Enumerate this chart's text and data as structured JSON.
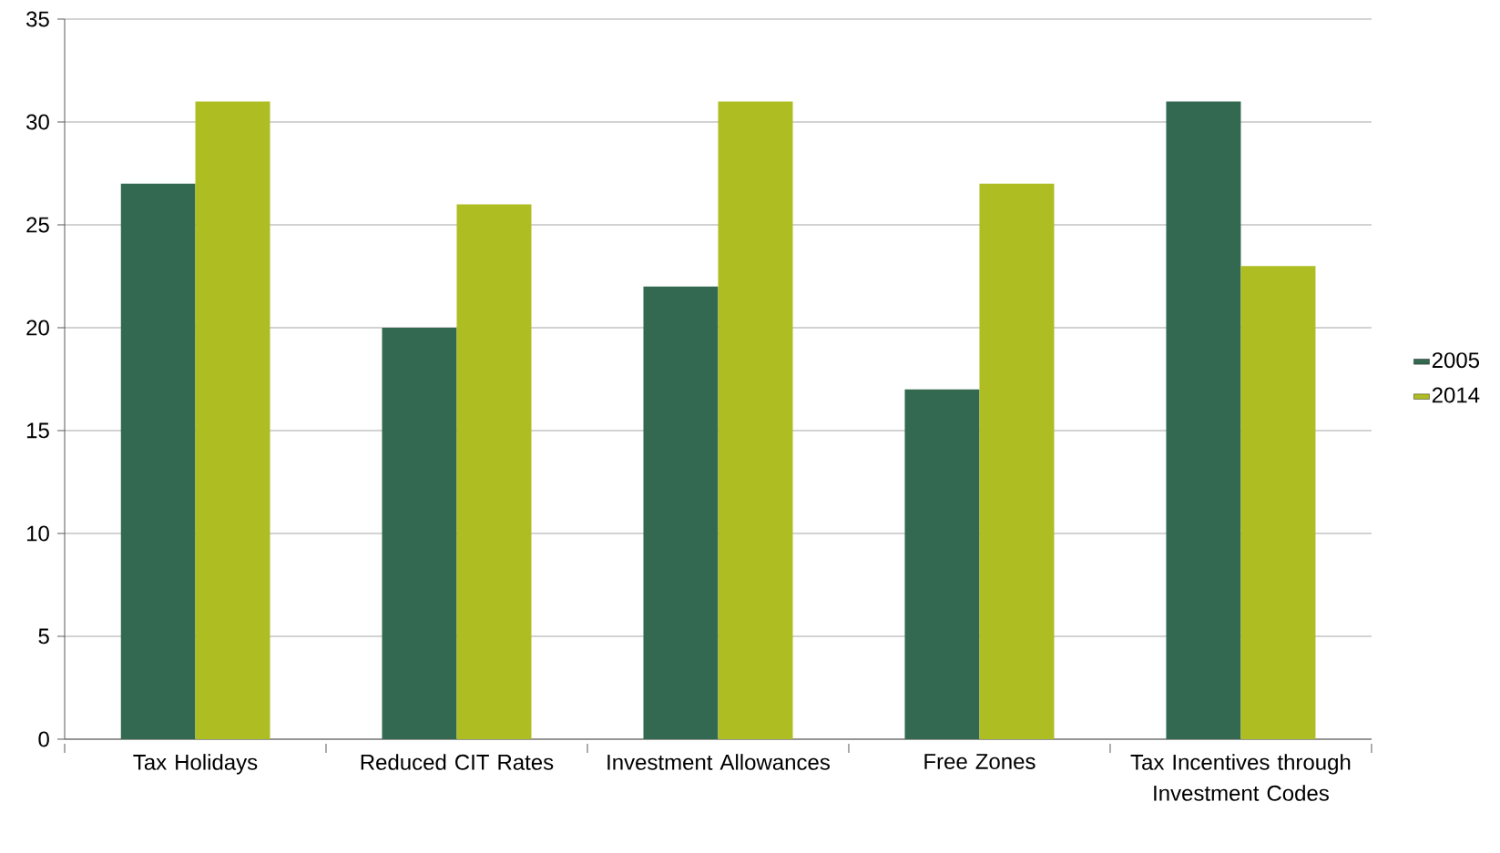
{
  "chart_data": {
    "type": "bar",
    "categories": [
      "Tax Holidays",
      "Reduced CIT Rates",
      "Investment Allowances",
      "Free Zones",
      "Tax Incentives through Investment Codes"
    ],
    "series": [
      {
        "name": "2005",
        "color": "#336950",
        "values": [
          27,
          20,
          22,
          17,
          31
        ]
      },
      {
        "name": "2014",
        "color": "#aebd22",
        "values": [
          31,
          26,
          31,
          27,
          23
        ]
      }
    ],
    "ylim": [
      0,
      35
    ],
    "yticks": [
      0,
      5,
      10,
      15,
      20,
      25,
      30,
      35
    ],
    "grid": "y",
    "legend": "right"
  }
}
